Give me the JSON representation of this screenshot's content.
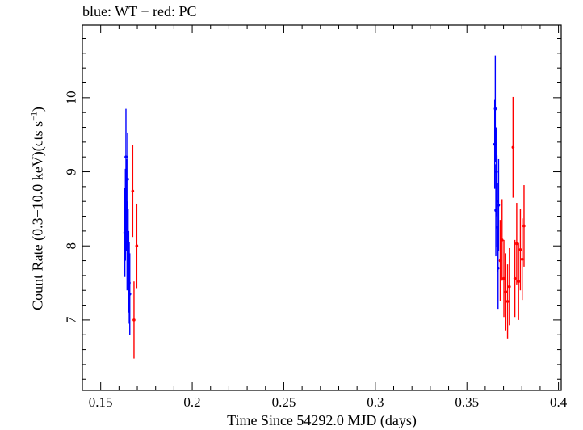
{
  "chart_data": {
    "type": "scatter",
    "title": "blue: WT − red: PC",
    "xlabel": "Time Since 54292.0 MJD (days)",
    "ylabel_main": "Count Rate (0.3−10.0 keV)(cts s",
    "ylabel_sup": "−1",
    "ylabel_end": ")",
    "xlim": [
      0.14,
      0.4015
    ],
    "ylim": [
      6.05,
      10.98
    ],
    "x_ticks": [
      0.15,
      0.2,
      0.25,
      0.3,
      0.35,
      0.4
    ],
    "x_tick_labels": [
      "0.15",
      "0.2",
      "0.25",
      "0.3",
      "0.35",
      "0.4"
    ],
    "y_ticks": [
      7,
      8,
      9,
      10
    ],
    "y_tick_labels": [
      "7",
      "8",
      "9",
      "10"
    ],
    "grid": false,
    "series": [
      {
        "color": "#0000ff",
        "points": [
          {
            "x": 0.1632,
            "y": 8.18,
            "yerr": 0.6
          },
          {
            "x": 0.1635,
            "y": 8.42,
            "yerr": 0.62
          },
          {
            "x": 0.1638,
            "y": 9.2,
            "yerr": 0.65
          },
          {
            "x": 0.1641,
            "y": 8.55,
            "yerr": 0.62
          },
          {
            "x": 0.1644,
            "y": 8.0,
            "yerr": 0.6
          },
          {
            "x": 0.1647,
            "y": 8.9,
            "yerr": 0.63
          },
          {
            "x": 0.165,
            "y": 7.9,
            "yerr": 0.6
          },
          {
            "x": 0.1653,
            "y": 7.65,
            "yerr": 0.55
          },
          {
            "x": 0.1656,
            "y": 7.5,
            "yerr": 0.55
          },
          {
            "x": 0.1659,
            "y": 7.35,
            "yerr": 0.55
          },
          {
            "x": 0.3652,
            "y": 9.37,
            "yerr": 0.6
          },
          {
            "x": 0.3655,
            "y": 9.85,
            "yerr": 0.72
          },
          {
            "x": 0.3658,
            "y": 8.48,
            "yerr": 0.62
          },
          {
            "x": 0.3661,
            "y": 9.0,
            "yerr": 0.6
          },
          {
            "x": 0.3664,
            "y": 8.6,
            "yerr": 0.62
          },
          {
            "x": 0.3667,
            "y": 8.25,
            "yerr": 0.6
          },
          {
            "x": 0.367,
            "y": 7.7,
            "yerr": 0.55
          },
          {
            "x": 0.3673,
            "y": 8.55,
            "yerr": 0.62
          }
        ]
      },
      {
        "color": "#ff0000",
        "points": [
          {
            "x": 0.1675,
            "y": 8.74,
            "yerr": 0.62
          },
          {
            "x": 0.1682,
            "y": 7.0,
            "yerr": 0.52
          },
          {
            "x": 0.1697,
            "y": 8.0,
            "yerr": 0.57
          },
          {
            "x": 0.3682,
            "y": 7.8,
            "yerr": 0.55
          },
          {
            "x": 0.3692,
            "y": 8.08,
            "yerr": 0.55
          },
          {
            "x": 0.3702,
            "y": 7.56,
            "yerr": 0.52
          },
          {
            "x": 0.3712,
            "y": 7.38,
            "yerr": 0.52
          },
          {
            "x": 0.3722,
            "y": 7.25,
            "yerr": 0.5
          },
          {
            "x": 0.3732,
            "y": 7.45,
            "yerr": 0.52
          },
          {
            "x": 0.3752,
            "y": 9.33,
            "yerr": 0.68
          },
          {
            "x": 0.3762,
            "y": 7.56,
            "yerr": 0.52
          },
          {
            "x": 0.3772,
            "y": 8.03,
            "yerr": 0.55
          },
          {
            "x": 0.3782,
            "y": 7.52,
            "yerr": 0.52
          },
          {
            "x": 0.3792,
            "y": 7.95,
            "yerr": 0.55
          },
          {
            "x": 0.3802,
            "y": 7.82,
            "yerr": 0.55
          },
          {
            "x": 0.3812,
            "y": 8.27,
            "yerr": 0.55
          }
        ]
      }
    ]
  }
}
